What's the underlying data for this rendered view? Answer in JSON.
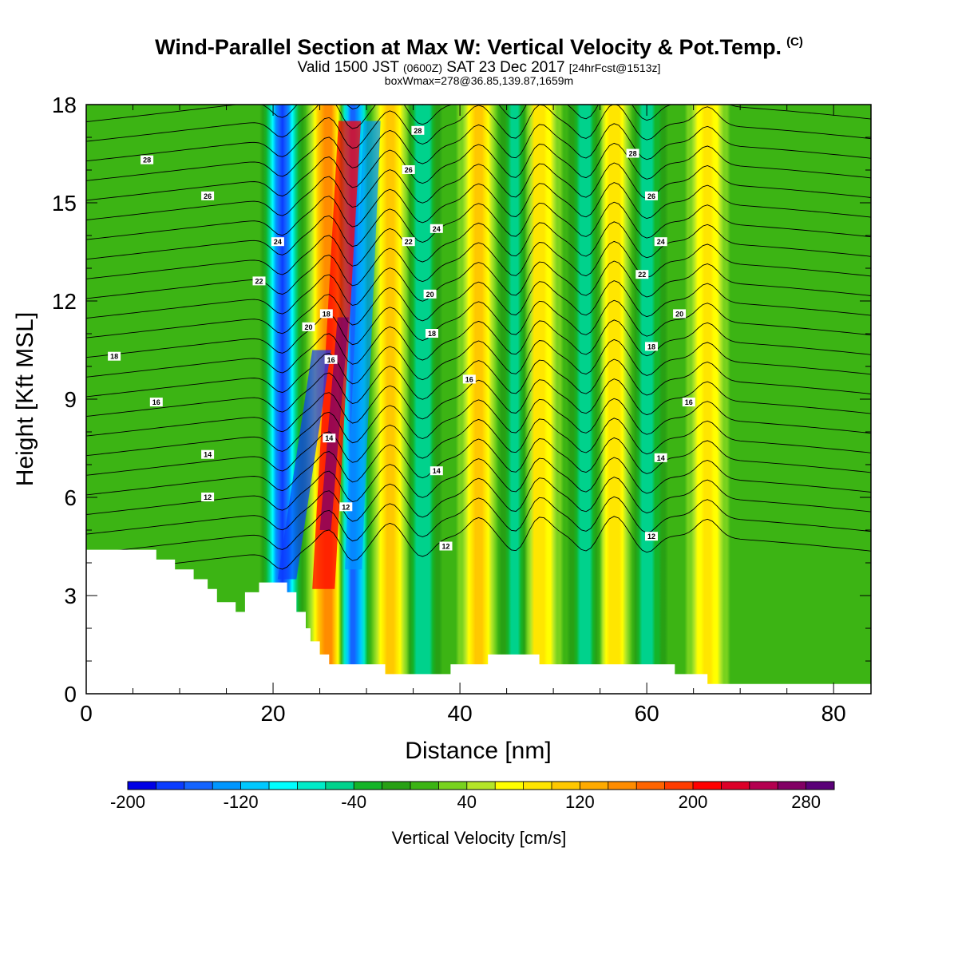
{
  "header": {
    "title": "Wind-Parallel Section at Max W: Vertical Velocity & Pot.Temp.",
    "copyright": "(C)",
    "valid_prefix": "Valid 1500 JST",
    "valid_utc": "(0600Z)",
    "valid_date": "SAT 23 Dec 2017",
    "forecast": "[24hrFcst@1513z]",
    "boxwmax": "boxWmax=278@36.85,139.87,1659m"
  },
  "chart_data": {
    "type": "heatmap",
    "xlabel": "Distance [nm]",
    "ylabel": "Height [Kft MSL]",
    "xlim": [
      0,
      84
    ],
    "ylim": [
      0,
      18
    ],
    "x_ticks": [
      0,
      20,
      40,
      60,
      80
    ],
    "y_ticks": [
      0,
      3,
      6,
      9,
      12,
      15,
      18
    ],
    "grid": false,
    "colorbar": {
      "title": "Vertical Velocity [cm/s]",
      "placement": "bottom",
      "levels": [
        -200,
        -180,
        -160,
        -140,
        -120,
        -100,
        -80,
        -60,
        -40,
        -20,
        0,
        20,
        40,
        60,
        80,
        100,
        120,
        140,
        160,
        180,
        200,
        220,
        240,
        260,
        280,
        300
      ],
      "colors": [
        "#0000e6",
        "#0a3cff",
        "#1464ff",
        "#0096ff",
        "#00c8ff",
        "#00ffff",
        "#00ebc8",
        "#00d28c",
        "#14b428",
        "#28a014",
        "#3cb414",
        "#78d21e",
        "#b4e628",
        "#ffff00",
        "#ffe600",
        "#ffc800",
        "#ffaa00",
        "#ff8c00",
        "#ff6400",
        "#ff3c00",
        "#ff0000",
        "#dc0028",
        "#b40050",
        "#820064",
        "#5a0078"
      ],
      "tick_labels": [
        "-200",
        "-120",
        "-40",
        "40",
        "120",
        "200",
        "280"
      ]
    },
    "updraft_columns_nm": [
      26.0,
      32.5,
      42.0,
      48.5,
      56.5,
      66.5
    ],
    "downdraft_columns_nm": [
      21.0,
      28.5,
      36.0,
      46.0,
      53.5,
      60.0
    ],
    "peak_updraft_cms": 278,
    "contour_labels": [
      {
        "text": "28",
        "x": 6.5,
        "y": 16.3
      },
      {
        "text": "26",
        "x": 13,
        "y": 15.2
      },
      {
        "text": "24",
        "x": 20.5,
        "y": 13.8
      },
      {
        "text": "22",
        "x": 18.5,
        "y": 12.6
      },
      {
        "text": "18",
        "x": 3,
        "y": 10.3
      },
      {
        "text": "16",
        "x": 7.5,
        "y": 8.9
      },
      {
        "text": "14",
        "x": 13,
        "y": 7.3
      },
      {
        "text": "12",
        "x": 13,
        "y": 6.0
      },
      {
        "text": "20",
        "x": 23.8,
        "y": 11.2
      },
      {
        "text": "18",
        "x": 25.7,
        "y": 11.6
      },
      {
        "text": "16",
        "x": 26.2,
        "y": 10.2
      },
      {
        "text": "14",
        "x": 26.0,
        "y": 7.8
      },
      {
        "text": "12",
        "x": 27.8,
        "y": 5.7
      },
      {
        "text": "28",
        "x": 35.5,
        "y": 17.2
      },
      {
        "text": "26",
        "x": 34.5,
        "y": 16.0
      },
      {
        "text": "24",
        "x": 37.5,
        "y": 14.2
      },
      {
        "text": "22",
        "x": 34.5,
        "y": 13.8
      },
      {
        "text": "20",
        "x": 36.8,
        "y": 12.2
      },
      {
        "text": "18",
        "x": 37.0,
        "y": 11.0
      },
      {
        "text": "16",
        "x": 41.0,
        "y": 9.6
      },
      {
        "text": "14",
        "x": 37.5,
        "y": 6.8
      },
      {
        "text": "12",
        "x": 38.5,
        "y": 4.5
      },
      {
        "text": "28",
        "x": 58.5,
        "y": 16.5
      },
      {
        "text": "26",
        "x": 60.5,
        "y": 15.2
      },
      {
        "text": "24",
        "x": 61.5,
        "y": 13.8
      },
      {
        "text": "22",
        "x": 59.5,
        "y": 12.8
      },
      {
        "text": "20",
        "x": 63.5,
        "y": 11.6
      },
      {
        "text": "18",
        "x": 60.5,
        "y": 10.6
      },
      {
        "text": "16",
        "x": 64.5,
        "y": 8.9
      },
      {
        "text": "14",
        "x": 61.5,
        "y": 7.2
      },
      {
        "text": "12",
        "x": 60.5,
        "y": 4.8
      }
    ]
  }
}
